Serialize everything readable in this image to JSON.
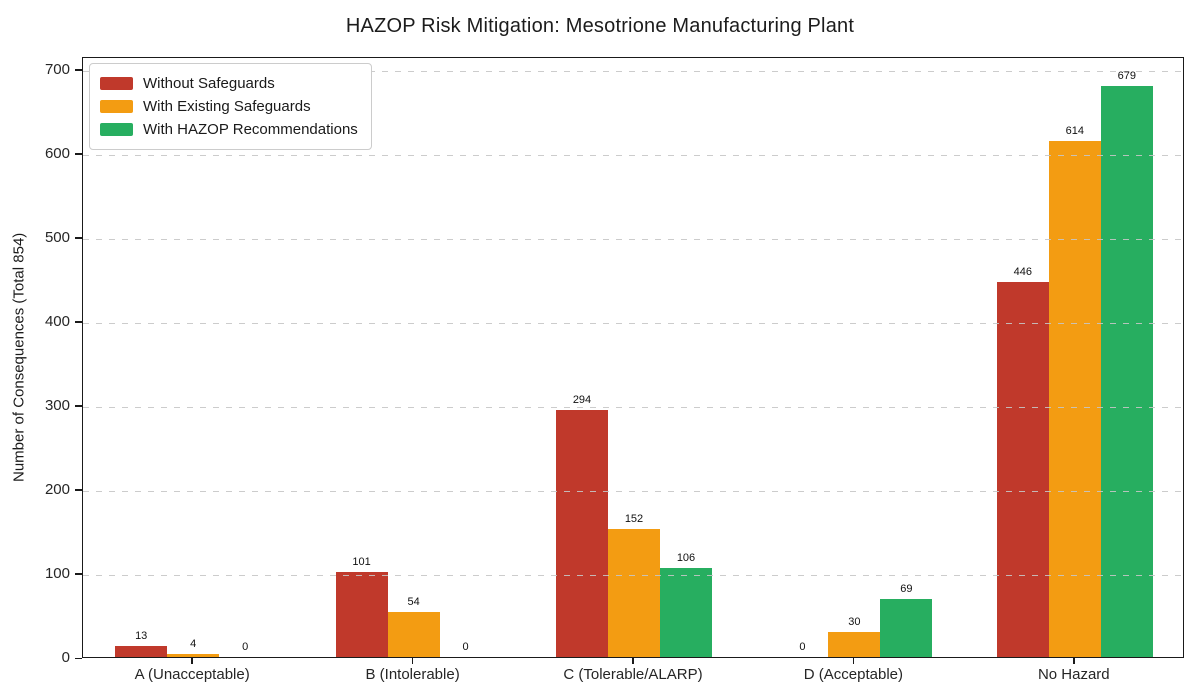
{
  "chart_data": {
    "type": "bar",
    "title": "HAZOP Risk Mitigation: Mesotrione Manufacturing Plant",
    "xlabel": "",
    "ylabel": "Number of Consequences (Total 854)",
    "categories": [
      "A (Unacceptable)",
      "B (Intolerable)",
      "C (Tolerable/ALARP)",
      "D (Acceptable)",
      "No Hazard"
    ],
    "series": [
      {
        "name": "Without Safeguards",
        "color": "#c0392b",
        "values": [
          13,
          101,
          294,
          0,
          446
        ]
      },
      {
        "name": "With Existing Safeguards",
        "color": "#f39c12",
        "values": [
          4,
          54,
          152,
          30,
          614
        ]
      },
      {
        "name": "With HAZOP Recommendations",
        "color": "#27ae60",
        "values": [
          0,
          0,
          106,
          69,
          679
        ]
      }
    ],
    "yticks": [
      0,
      100,
      200,
      300,
      400,
      500,
      600,
      700
    ],
    "ylim": [
      0,
      715
    ],
    "grid": "horizontal-dashed",
    "legend_position": "upper-left",
    "value_labels": true
  }
}
